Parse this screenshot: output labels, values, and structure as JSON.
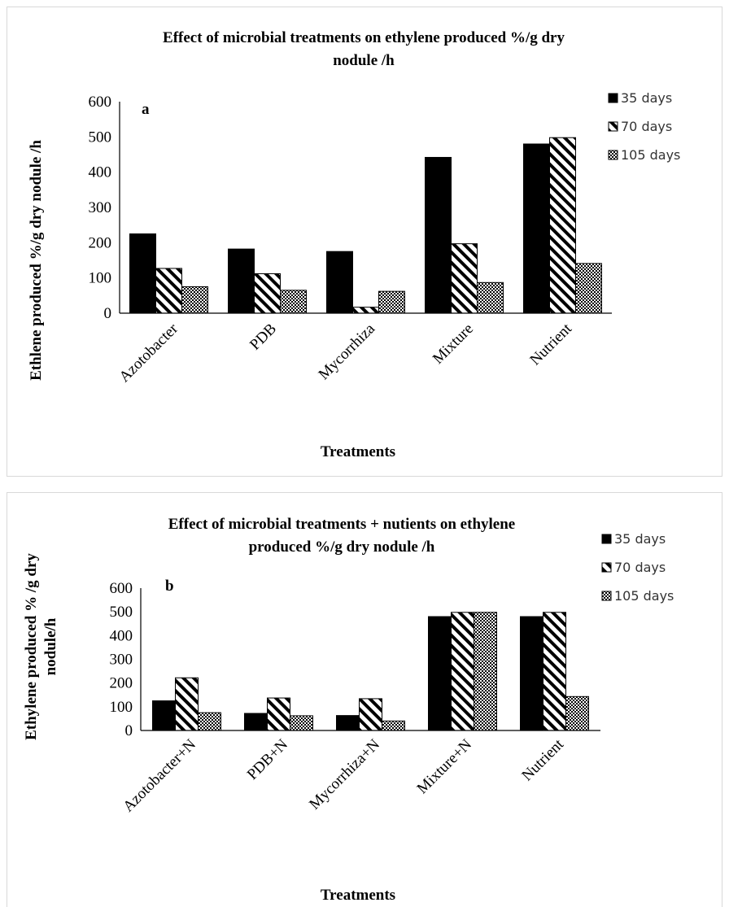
{
  "chart_data": [
    {
      "type": "bar",
      "title_line1": "Effect of microbial treatments on ethylene produced %/g dry",
      "title_line2": "nodule /h",
      "annotation": "a",
      "xlabel": "Treatments",
      "ylabel_line1": "Ethlene produced %/g dry nodule /h",
      "ylim": [
        0,
        600
      ],
      "yticks": [
        "0",
        "100",
        "200",
        "300",
        "400",
        "500",
        "600"
      ],
      "categories": [
        "Azotobacter",
        "PDB",
        "Mycorrhiza",
        "Mixture",
        "Nutrient"
      ],
      "series": [
        {
          "name": "35 days",
          "pattern": "solid",
          "values": [
            225,
            182,
            175,
            442,
            480
          ]
        },
        {
          "name": "70 days",
          "pattern": "diagonal",
          "values": [
            127,
            112,
            17,
            197,
            498
          ]
        },
        {
          "name": "105 days",
          "pattern": "dotted",
          "values": [
            75,
            65,
            62,
            87,
            141
          ]
        }
      ],
      "legend_position": "right",
      "grid": false
    },
    {
      "type": "bar",
      "title_line1": "Effect of microbial treatments + nutients on ethylene",
      "title_line2": "produced %/g dry nodule /h",
      "annotation": "b",
      "xlabel": "Treatments",
      "ylabel_line1": "Ethylene produced % /g dry",
      "ylabel_line2": "nodule/h",
      "ylim": [
        0,
        600
      ],
      "yticks": [
        "0",
        "100",
        "200",
        "300",
        "400",
        "500",
        "600"
      ],
      "categories": [
        "Azotobacter+N",
        "PDB+N",
        "Mycorrhiza+N",
        "Mixture+N",
        "Nutrient"
      ],
      "series": [
        {
          "name": "35 days",
          "pattern": "solid",
          "values": [
            125,
            72,
            63,
            480,
            480
          ]
        },
        {
          "name": "70 days",
          "pattern": "diagonal",
          "values": [
            222,
            137,
            134,
            498,
            498
          ]
        },
        {
          "name": "105 days",
          "pattern": "dotted",
          "values": [
            75,
            62,
            40,
            498,
            143
          ]
        }
      ],
      "legend_position": "right",
      "grid": false
    }
  ]
}
